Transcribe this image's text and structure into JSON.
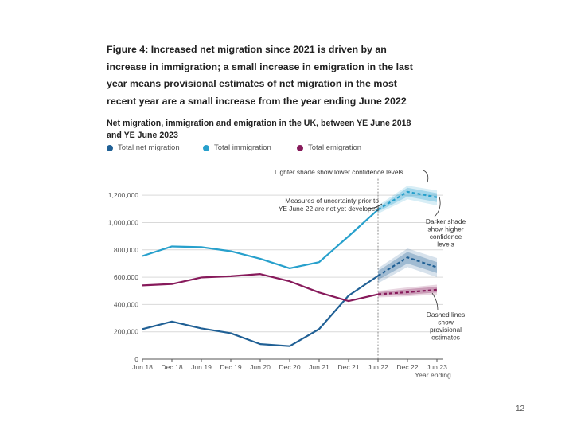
{
  "figure": {
    "title": "Figure 4: Increased net migration since 2021 is driven by an increase in immigration; a small increase in emigration in the last year means provisional estimates of net migration in the most recent year are a small increase from the year ending June 2022"
  },
  "page_number": "12",
  "colors": {
    "net": "#206095",
    "immigration": "#27a0cc",
    "emigration": "#871a5b",
    "grid": "#d9d9d9",
    "axis": "#555555"
  },
  "chart_data": {
    "type": "line",
    "title": "Net migration, immigration and emigration in the UK, between YE June 2018 and YE June 2023",
    "xlabel": "Year ending",
    "ylabel": "",
    "categories": [
      "Jun 18",
      "Dec 18",
      "Jun 19",
      "Dec 19",
      "Jun 20",
      "Dec 20",
      "Jun 21",
      "Dec 21",
      "Jun 22",
      "Dec 22",
      "Jun 23"
    ],
    "ylim": [
      0,
      1300000
    ],
    "yticks": [
      0,
      200000,
      400000,
      600000,
      800000,
      1000000,
      1200000
    ],
    "ytick_labels": [
      "0",
      "200,000",
      "400,000",
      "600,000",
      "800,000",
      "1,000,000",
      "1,200,000"
    ],
    "provisional_from_index": 8,
    "series": [
      {
        "name": "Total net migration",
        "key": "net",
        "values": [
          220000,
          275000,
          225000,
          190000,
          110000,
          95000,
          220000,
          465000,
          610000,
          745000,
          672000
        ],
        "ci_darker": [
          null,
          null,
          null,
          null,
          null,
          null,
          null,
          null,
          [
            580000,
            645000
          ],
          [
            700000,
            785000
          ],
          [
            630000,
            710000
          ]
        ],
        "ci_lighter": [
          null,
          null,
          null,
          null,
          null,
          null,
          null,
          null,
          [
            555000,
            665000
          ],
          [
            675000,
            810000
          ],
          [
            600000,
            740000
          ]
        ]
      },
      {
        "name": "Total immigration",
        "key": "immigration",
        "values": [
          755000,
          825000,
          820000,
          790000,
          735000,
          665000,
          710000,
          900000,
          1095000,
          1225000,
          1185000
        ],
        "ci_darker": [
          null,
          null,
          null,
          null,
          null,
          null,
          null,
          null,
          [
            1080000,
            1110000
          ],
          [
            1190000,
            1255000
          ],
          [
            1150000,
            1215000
          ]
        ],
        "ci_lighter": [
          null,
          null,
          null,
          null,
          null,
          null,
          null,
          null,
          [
            1065000,
            1125000
          ],
          [
            1170000,
            1270000
          ],
          [
            1125000,
            1235000
          ]
        ]
      },
      {
        "name": "Total emigration",
        "key": "emigration",
        "values": [
          540000,
          550000,
          598000,
          607000,
          623000,
          570000,
          488000,
          425000,
          475000,
          490000,
          508000
        ],
        "ci_darker": [
          null,
          null,
          null,
          null,
          null,
          null,
          null,
          null,
          [
            462000,
            490000
          ],
          [
            472000,
            512000
          ],
          [
            488000,
            530000
          ]
        ],
        "ci_lighter": [
          null,
          null,
          null,
          null,
          null,
          null,
          null,
          null,
          [
            452000,
            500000
          ],
          [
            460000,
            525000
          ],
          [
            472000,
            545000
          ]
        ]
      }
    ],
    "legend_position": "top-left",
    "annotations": {
      "lighter": "Lighter shade show lower confidence levels",
      "uncertainty": [
        "Measures of uncertainty prior to",
        "YE June 22 are not yet developed"
      ],
      "darker": [
        "Darker shade",
        "show higher",
        "confidence",
        "levels"
      ],
      "dashed": [
        "Dashed lines",
        "show",
        "provisional",
        "estimates"
      ]
    }
  }
}
